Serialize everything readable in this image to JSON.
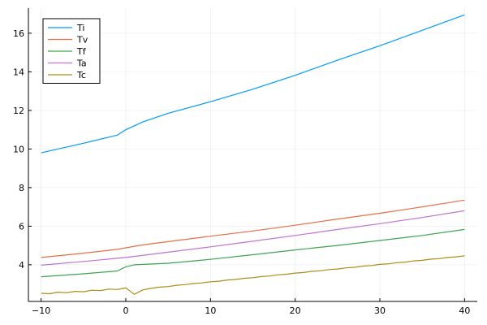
{
  "chart_data": {
    "type": "line",
    "title": "",
    "xlabel": "",
    "ylabel": "",
    "xlim": [
      -11.5,
      41.5
    ],
    "ylim": [
      2.1,
      17.3
    ],
    "grid": true,
    "legend_position": "top-left",
    "x_ticks": [
      -10,
      0,
      10,
      20,
      30,
      40
    ],
    "x_tick_labels": [
      "−10",
      "0",
      "10",
      "20",
      "30",
      "40"
    ],
    "y_ticks": [
      4,
      6,
      8,
      10,
      12,
      14,
      16
    ],
    "y_tick_labels": [
      "4",
      "6",
      "8",
      "10",
      "12",
      "14",
      "16"
    ],
    "series": [
      {
        "name": "Ti",
        "color": "#009AFA",
        "x": [
          -10,
          -5,
          -1,
          0,
          1,
          2,
          5,
          10,
          15,
          20,
          25,
          30,
          35,
          40
        ],
        "y": [
          9.8,
          10.3,
          10.72,
          11.0,
          11.2,
          11.4,
          11.85,
          12.45,
          13.1,
          13.82,
          14.6,
          15.35,
          16.15,
          16.95
        ]
      },
      {
        "name": "Tv",
        "color": "#E36F47",
        "x": [
          -10,
          -5,
          -1,
          0,
          2,
          5,
          10,
          15,
          20,
          25,
          30,
          35,
          40
        ],
        "y": [
          4.38,
          4.6,
          4.8,
          4.88,
          5.03,
          5.2,
          5.48,
          5.75,
          6.05,
          6.37,
          6.67,
          7.0,
          7.35
        ]
      },
      {
        "name": "Tf",
        "color": "#3EA44E",
        "x": [
          -10,
          -5,
          -1,
          0,
          1,
          2,
          5,
          10,
          15,
          20,
          25,
          30,
          35,
          40
        ],
        "y": [
          3.38,
          3.53,
          3.68,
          3.9,
          4.0,
          4.02,
          4.08,
          4.28,
          4.52,
          4.77,
          5.0,
          5.26,
          5.52,
          5.83
        ]
      },
      {
        "name": "Ta",
        "color": "#C271D2",
        "x": [
          -10,
          -5,
          0,
          5,
          10,
          15,
          20,
          25,
          30,
          35,
          40
        ],
        "y": [
          3.98,
          4.17,
          4.38,
          4.65,
          4.93,
          5.22,
          5.52,
          5.83,
          6.13,
          6.45,
          6.8
        ]
      },
      {
        "name": "Tc",
        "color": "#AC8D18",
        "x": [
          -10,
          -9,
          -8,
          -7,
          -6,
          -5,
          -4,
          -3,
          -2,
          -1,
          0,
          1,
          2,
          3,
          4,
          5,
          6,
          7,
          8,
          9,
          10,
          11,
          12,
          13,
          14,
          15,
          16,
          17,
          18,
          19,
          20,
          21,
          22,
          23,
          24,
          25,
          26,
          27,
          28,
          29,
          30,
          31,
          32,
          33,
          34,
          35,
          36,
          37,
          38,
          39,
          40
        ],
        "y": [
          2.52,
          2.5,
          2.58,
          2.55,
          2.62,
          2.6,
          2.68,
          2.66,
          2.74,
          2.72,
          2.8,
          2.47,
          2.7,
          2.78,
          2.84,
          2.87,
          2.94,
          2.97,
          3.03,
          3.06,
          3.12,
          3.15,
          3.21,
          3.24,
          3.3,
          3.33,
          3.39,
          3.42,
          3.48,
          3.51,
          3.57,
          3.6,
          3.66,
          3.69,
          3.75,
          3.78,
          3.84,
          3.87,
          3.93,
          3.96,
          4.02,
          4.05,
          4.11,
          4.14,
          4.2,
          4.23,
          4.29,
          4.32,
          4.38,
          4.41,
          4.46
        ]
      }
    ]
  }
}
